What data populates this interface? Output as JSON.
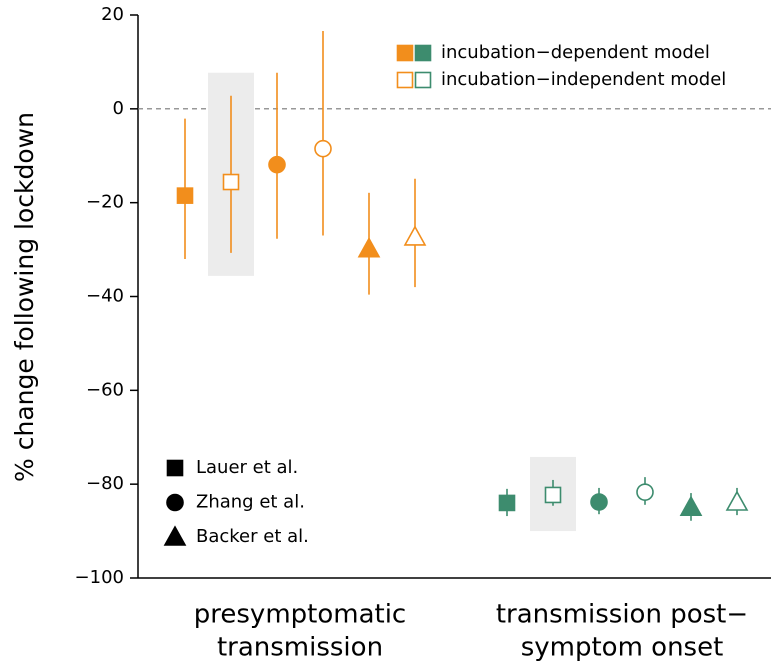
{
  "chart_data": {
    "type": "errorpoint",
    "ylabel": "% change following lockdown",
    "categories": [
      [
        "presymptomatic",
        "transmission"
      ],
      [
        "transmission post−",
        "symptom onset"
      ]
    ],
    "category_colors": [
      "#f28e1c",
      "#3d8c6e"
    ],
    "ylim": [
      -100,
      20
    ],
    "yticks": [
      {
        "value": -100,
        "label": "−100"
      },
      {
        "value": -80,
        "label": "−80"
      },
      {
        "value": -60,
        "label": "−60"
      },
      {
        "value": -40,
        "label": "−40"
      },
      {
        "value": -20,
        "label": "−20"
      },
      0,
      20
    ],
    "reference_line": 0,
    "grid": false,
    "legend_models": [
      {
        "name": "incubation−dependent model",
        "filled": true
      },
      {
        "name": "incubation−independent model",
        "filled": false
      }
    ],
    "legend_studies": [
      {
        "name": "Lauer et al.",
        "marker": "square"
      },
      {
        "name": "Zhang et al.",
        "marker": "circle"
      },
      {
        "name": "Backer et al.",
        "marker": "triangle"
      }
    ],
    "series": [
      {
        "marker": "square",
        "filled": true,
        "values": [
          -18.5,
          -84
        ],
        "lower": [
          -32,
          -86.8
        ],
        "upper": [
          -2.1,
          -81
        ]
      },
      {
        "marker": "square",
        "filled": false,
        "values": [
          -15.6,
          -82.3
        ],
        "lower": [
          -30.7,
          -84.6
        ],
        "upper": [
          2.8,
          -79.1
        ],
        "band_low": [
          -35.6,
          -90
        ],
        "band_high": [
          7.7,
          -74.2
        ]
      },
      {
        "marker": "circle",
        "filled": true,
        "values": [
          -11.9,
          -83.8
        ],
        "lower": [
          -27.7,
          -86.4
        ],
        "upper": [
          7.7,
          -80.8
        ]
      },
      {
        "marker": "circle",
        "filled": false,
        "values": [
          -8.5,
          -81.7
        ],
        "lower": [
          -27,
          -84.4
        ],
        "upper": [
          16.6,
          -78.5
        ]
      },
      {
        "marker": "triangle",
        "filled": true,
        "values": [
          -29.8,
          -84.9
        ],
        "lower": [
          -39.6,
          -87.8
        ],
        "upper": [
          -17.9,
          -81.9
        ]
      },
      {
        "marker": "triangle",
        "filled": false,
        "values": [
          -27.3,
          -83.8
        ],
        "lower": [
          -38,
          -86.6
        ],
        "upper": [
          -14.9,
          -80.8
        ]
      }
    ]
  }
}
